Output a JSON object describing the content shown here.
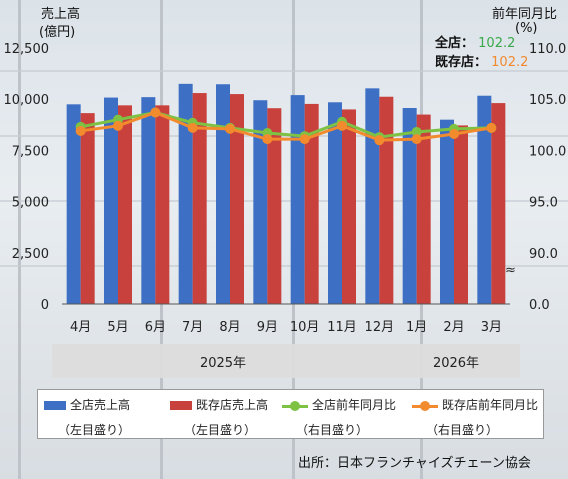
{
  "chart_data": {
    "type": "bar+line",
    "categories": [
      "4月",
      "5月",
      "6月",
      "7月",
      "8月",
      "9月",
      "10月",
      "11月",
      "12月",
      "1月",
      "2月",
      "3月"
    ],
    "year_groups": [
      {
        "label": "2025年",
        "count": 9
      },
      {
        "label": "2026年",
        "count": 3
      }
    ],
    "left_axis": {
      "title_line1": "売上高",
      "title_line2": "(億円)",
      "range": [
        0,
        12500
      ],
      "ticks": [
        "0",
        "2,500",
        "5,000",
        "7,500",
        "10,000",
        "12,500"
      ]
    },
    "right_axis": {
      "title_line1": "前年同月比",
      "title_line2": "(%)",
      "ticks": [
        "0.0",
        "90.0",
        "95.0",
        "100.0",
        "105.0",
        "110.0"
      ],
      "break_symbol": "≈"
    },
    "series": [
      {
        "name": "全店売上高",
        "sub": "（左目盛り）",
        "kind": "bar",
        "color": "#3d6fc4",
        "values": [
          9750,
          10080,
          10100,
          10750,
          10730,
          9950,
          10200,
          9850,
          10530,
          9570,
          9000,
          10170
        ]
      },
      {
        "name": "既存店売上高",
        "sub": "（左目盛り）",
        "kind": "bar",
        "color": "#c8413c",
        "values": [
          9320,
          9700,
          9700,
          10300,
          10250,
          9560,
          9770,
          9500,
          10120,
          9250,
          8720,
          9810
        ]
      },
      {
        "name": "全店前年同月比",
        "sub": "（右目盛り）",
        "kind": "line",
        "color": "#7dc243",
        "values": [
          102.3,
          103.0,
          103.7,
          102.7,
          102.2,
          101.7,
          101.4,
          102.8,
          101.3,
          101.8,
          102.1,
          102.2
        ]
      },
      {
        "name": "既存店前年同月比",
        "sub": "（右目盛り）",
        "kind": "line",
        "color": "#f28a2e",
        "values": [
          101.9,
          102.4,
          103.7,
          102.2,
          102.1,
          101.1,
          101.1,
          102.4,
          101.0,
          101.1,
          101.6,
          102.2
        ]
      }
    ],
    "summary": [
      {
        "label": "全店：",
        "value": "102.2",
        "color": "#3aa84a"
      },
      {
        "label": "既存店：",
        "value": "102.2",
        "color": "#f28a2e"
      }
    ],
    "grid": false,
    "legend_position": "bottom"
  },
  "source": "出所：日本フランチャイズチェーン協会"
}
